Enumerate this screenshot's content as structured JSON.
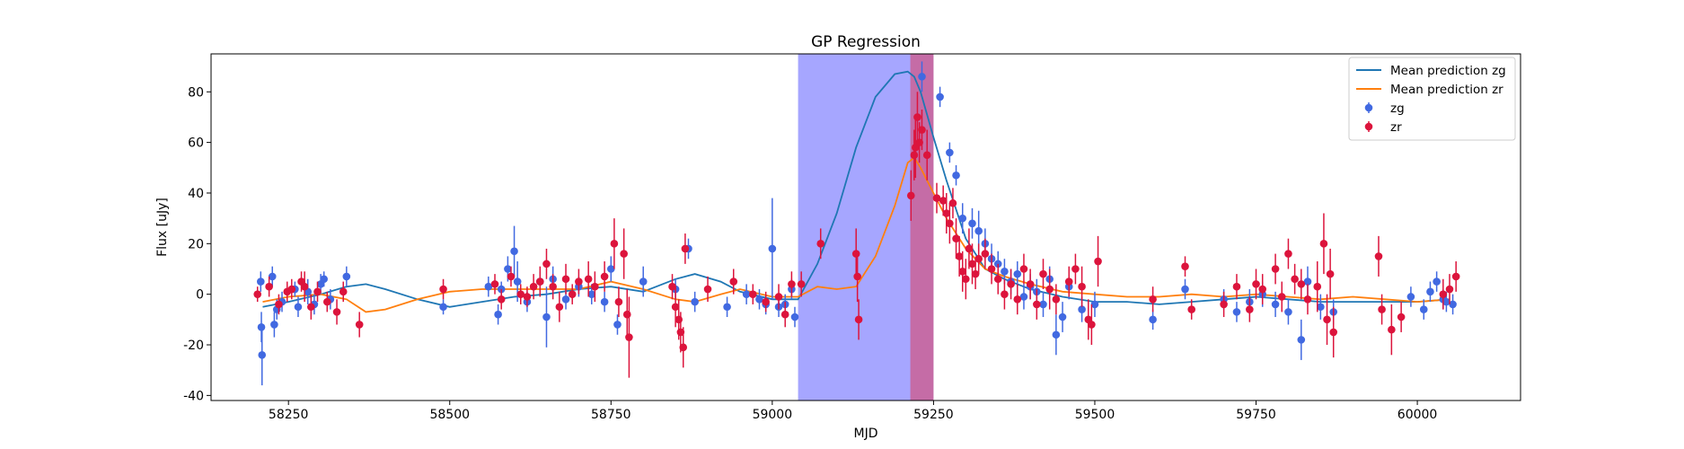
{
  "chart_data": {
    "type": "scatter",
    "title": "GP Regression",
    "xlabel": "MJD",
    "ylabel": "Flux [uJy]",
    "xlim": [
      58130,
      60160
    ],
    "ylim": [
      -42,
      95
    ],
    "xticks": [
      58250,
      58500,
      58750,
      59000,
      59250,
      59500,
      59750,
      60000
    ],
    "yticks": [
      -40,
      -20,
      0,
      20,
      40,
      60,
      80
    ],
    "grid": false,
    "legend_position": "top-right",
    "shaded_regions": [
      {
        "x0": 59040,
        "x1": 59250,
        "color": "#0000ff",
        "opacity": 0.35
      },
      {
        "x0": 59214,
        "x1": 59250,
        "color": "#ff0000",
        "opacity": 0.35
      }
    ],
    "series": [
      {
        "name": "Mean prediction zg",
        "kind": "line",
        "color": "#1f77b4",
        "x": [
          58210,
          58250,
          58300,
          58340,
          58370,
          58400,
          58450,
          58500,
          58550,
          58600,
          58650,
          58700,
          58750,
          58800,
          58850,
          58880,
          58920,
          58950,
          59000,
          59040,
          59070,
          59100,
          59130,
          59160,
          59190,
          59210,
          59220,
          59230,
          59250,
          59270,
          59300,
          59330,
          59360,
          59400,
          59450,
          59500,
          59550,
          59600,
          59650,
          59700,
          59750,
          59800,
          59850,
          59900,
          59950,
          60000,
          60050
        ],
        "y": [
          -5,
          -3,
          0,
          3,
          4,
          2,
          -2,
          -5,
          -3,
          -1,
          0,
          2,
          3,
          1,
          6,
          8,
          5,
          1,
          -2,
          -2,
          12,
          32,
          58,
          78,
          87,
          88,
          86,
          80,
          62,
          45,
          22,
          10,
          6,
          2,
          -1,
          -3,
          -3,
          -4,
          -3,
          -2,
          -1,
          -2,
          -3,
          -3,
          -3,
          -3,
          -2
        ]
      },
      {
        "name": "Mean prediction zr",
        "kind": "line",
        "color": "#ff7f0e",
        "x": [
          58210,
          58250,
          58300,
          58340,
          58370,
          58400,
          58450,
          58500,
          58550,
          58600,
          58650,
          58700,
          58750,
          58800,
          58850,
          58880,
          58920,
          58950,
          59000,
          59040,
          59070,
          59100,
          59130,
          59160,
          59190,
          59210,
          59220,
          59230,
          59250,
          59270,
          59300,
          59330,
          59360,
          59400,
          59450,
          59500,
          59550,
          59600,
          59650,
          59700,
          59750,
          59800,
          59850,
          59900,
          59950,
          60000,
          60050
        ],
        "y": [
          -3,
          -1,
          0,
          -2,
          -7,
          -6,
          -2,
          1,
          2,
          2,
          2,
          2,
          5,
          2,
          -2,
          -3,
          0,
          2,
          -1,
          -1,
          3,
          2,
          3,
          15,
          35,
          52,
          54,
          50,
          40,
          30,
          18,
          10,
          7,
          4,
          1,
          0,
          -1,
          -1,
          0,
          -1,
          0,
          -1,
          -2,
          -1,
          -2,
          -3,
          -2
        ]
      },
      {
        "name": "zg",
        "kind": "errorbar",
        "color": "#4169e1",
        "points": [
          [
            58207,
            5,
            4
          ],
          [
            58208,
            -13,
            6
          ],
          [
            58209,
            -24,
            12
          ],
          [
            58225,
            7,
            4
          ],
          [
            58228,
            -12,
            5
          ],
          [
            58232,
            -6,
            4
          ],
          [
            58240,
            -3,
            4
          ],
          [
            58260,
            2,
            3
          ],
          [
            58265,
            -5,
            4
          ],
          [
            58280,
            1,
            5
          ],
          [
            58290,
            -4,
            4
          ],
          [
            58300,
            4,
            4
          ],
          [
            58305,
            6,
            3
          ],
          [
            58315,
            -2,
            4
          ],
          [
            58340,
            7,
            4
          ],
          [
            58490,
            -5,
            3
          ],
          [
            58560,
            3,
            4
          ],
          [
            58575,
            -8,
            4
          ],
          [
            58580,
            2,
            3
          ],
          [
            58590,
            10,
            5
          ],
          [
            58600,
            17,
            10
          ],
          [
            58605,
            5,
            8
          ],
          [
            58620,
            -3,
            4
          ],
          [
            58640,
            5,
            4
          ],
          [
            58650,
            -9,
            12
          ],
          [
            58660,
            6,
            5
          ],
          [
            58680,
            -2,
            4
          ],
          [
            58700,
            3,
            4
          ],
          [
            58720,
            0,
            4
          ],
          [
            58740,
            -3,
            4
          ],
          [
            58750,
            10,
            5
          ],
          [
            58760,
            -12,
            4
          ],
          [
            58800,
            5,
            6
          ],
          [
            58850,
            2,
            4
          ],
          [
            58870,
            18,
            4
          ],
          [
            58880,
            -3,
            4
          ],
          [
            58930,
            -5,
            4
          ],
          [
            58960,
            0,
            4
          ],
          [
            58980,
            -2,
            4
          ],
          [
            58990,
            -4,
            4
          ],
          [
            59000,
            18,
            20
          ],
          [
            59010,
            -5,
            4
          ],
          [
            59020,
            -4,
            4
          ],
          [
            59030,
            2,
            4
          ],
          [
            59035,
            -9,
            4
          ],
          [
            59232,
            86,
            6
          ],
          [
            59260,
            78,
            4
          ],
          [
            59275,
            56,
            4
          ],
          [
            59285,
            47,
            4
          ],
          [
            59295,
            30,
            6
          ],
          [
            59310,
            28,
            6
          ],
          [
            59320,
            25,
            8
          ],
          [
            59330,
            20,
            6
          ],
          [
            59340,
            14,
            6
          ],
          [
            59350,
            12,
            5
          ],
          [
            59360,
            9,
            5
          ],
          [
            59370,
            5,
            5
          ],
          [
            59380,
            8,
            5
          ],
          [
            59390,
            -1,
            5
          ],
          [
            59400,
            3,
            5
          ],
          [
            59410,
            1,
            5
          ],
          [
            59420,
            -4,
            5
          ],
          [
            59430,
            6,
            5
          ],
          [
            59440,
            -16,
            8
          ],
          [
            59450,
            -9,
            6
          ],
          [
            59460,
            3,
            5
          ],
          [
            59480,
            -6,
            5
          ],
          [
            59500,
            -4,
            5
          ],
          [
            59590,
            -10,
            4
          ],
          [
            59640,
            2,
            4
          ],
          [
            59700,
            -2,
            4
          ],
          [
            59720,
            -7,
            4
          ],
          [
            59740,
            -3,
            5
          ],
          [
            59760,
            0,
            5
          ],
          [
            59780,
            -4,
            5
          ],
          [
            59800,
            -7,
            5
          ],
          [
            59820,
            -18,
            8
          ],
          [
            59830,
            5,
            6
          ],
          [
            59850,
            -5,
            5
          ],
          [
            59870,
            -7,
            5
          ],
          [
            59990,
            -1,
            4
          ],
          [
            60010,
            -6,
            4
          ],
          [
            60020,
            1,
            4
          ],
          [
            60030,
            5,
            4
          ],
          [
            60040,
            -2,
            4
          ],
          [
            60045,
            -3,
            4
          ],
          [
            60055,
            -4,
            4
          ]
        ]
      },
      {
        "name": "zr",
        "kind": "errorbar",
        "color": "#dc143c",
        "points": [
          [
            58202,
            0,
            3
          ],
          [
            58220,
            3,
            4
          ],
          [
            58235,
            -4,
            4
          ],
          [
            58248,
            1,
            4
          ],
          [
            58255,
            2,
            4
          ],
          [
            58270,
            5,
            4
          ],
          [
            58275,
            3,
            6
          ],
          [
            58285,
            -5,
            5
          ],
          [
            58295,
            1,
            4
          ],
          [
            58310,
            -3,
            4
          ],
          [
            58325,
            -7,
            5
          ],
          [
            58335,
            1,
            4
          ],
          [
            58360,
            -12,
            5
          ],
          [
            58490,
            2,
            4
          ],
          [
            58570,
            4,
            4
          ],
          [
            58580,
            -2,
            4
          ],
          [
            58595,
            7,
            4
          ],
          [
            58610,
            0,
            4
          ],
          [
            58620,
            -1,
            4
          ],
          [
            58630,
            3,
            5
          ],
          [
            58640,
            5,
            6
          ],
          [
            58650,
            12,
            6
          ],
          [
            58660,
            3,
            5
          ],
          [
            58670,
            -5,
            6
          ],
          [
            58680,
            6,
            6
          ],
          [
            58690,
            0,
            4
          ],
          [
            58700,
            5,
            5
          ],
          [
            58715,
            6,
            7
          ],
          [
            58725,
            3,
            6
          ],
          [
            58740,
            7,
            6
          ],
          [
            58755,
            20,
            10
          ],
          [
            58762,
            -3,
            6
          ],
          [
            58770,
            16,
            10
          ],
          [
            58775,
            -8,
            10
          ],
          [
            58778,
            -17,
            16
          ],
          [
            58845,
            3,
            5
          ],
          [
            58850,
            -5,
            8
          ],
          [
            58855,
            -10,
            8
          ],
          [
            58858,
            -15,
            8
          ],
          [
            58862,
            -21,
            8
          ],
          [
            58865,
            18,
            6
          ],
          [
            58900,
            2,
            5
          ],
          [
            58940,
            5,
            5
          ],
          [
            58970,
            0,
            4
          ],
          [
            58990,
            -3,
            4
          ],
          [
            59010,
            -1,
            5
          ],
          [
            59020,
            -8,
            5
          ],
          [
            59030,
            4,
            5
          ],
          [
            59045,
            4,
            5
          ],
          [
            59075,
            20,
            6
          ],
          [
            59130,
            16,
            10
          ],
          [
            59132,
            7,
            10
          ],
          [
            59134,
            -10,
            8
          ],
          [
            59215,
            39,
            10
          ],
          [
            59220,
            55,
            10
          ],
          [
            59222,
            58,
            12
          ],
          [
            59225,
            70,
            10
          ],
          [
            59228,
            60,
            8
          ],
          [
            59232,
            65,
            8
          ],
          [
            59240,
            55,
            10
          ],
          [
            59255,
            38,
            6
          ],
          [
            59265,
            37,
            6
          ],
          [
            59270,
            32,
            8
          ],
          [
            59275,
            28,
            8
          ],
          [
            59280,
            36,
            6
          ],
          [
            59285,
            22,
            8
          ],
          [
            59290,
            15,
            8
          ],
          [
            59295,
            9,
            8
          ],
          [
            59300,
            6,
            8
          ],
          [
            59305,
            18,
            8
          ],
          [
            59310,
            12,
            8
          ],
          [
            59315,
            8,
            6
          ],
          [
            59320,
            14,
            6
          ],
          [
            59330,
            16,
            6
          ],
          [
            59340,
            10,
            6
          ],
          [
            59350,
            6,
            6
          ],
          [
            59360,
            0,
            6
          ],
          [
            59370,
            4,
            6
          ],
          [
            59380,
            -2,
            6
          ],
          [
            59390,
            10,
            6
          ],
          [
            59400,
            4,
            6
          ],
          [
            59410,
            -4,
            6
          ],
          [
            59420,
            8,
            6
          ],
          [
            59430,
            2,
            8
          ],
          [
            59440,
            -2,
            6
          ],
          [
            59460,
            5,
            6
          ],
          [
            59470,
            10,
            6
          ],
          [
            59480,
            3,
            8
          ],
          [
            59490,
            -10,
            8
          ],
          [
            59495,
            -12,
            8
          ],
          [
            59505,
            13,
            10
          ],
          [
            59590,
            -2,
            5
          ],
          [
            59640,
            11,
            4
          ],
          [
            59650,
            -6,
            4
          ],
          [
            59700,
            -4,
            5
          ],
          [
            59720,
            3,
            5
          ],
          [
            59740,
            -6,
            5
          ],
          [
            59750,
            4,
            6
          ],
          [
            59760,
            2,
            6
          ],
          [
            59780,
            10,
            6
          ],
          [
            59790,
            -1,
            6
          ],
          [
            59800,
            16,
            6
          ],
          [
            59810,
            6,
            6
          ],
          [
            59820,
            4,
            6
          ],
          [
            59830,
            -2,
            6
          ],
          [
            59845,
            3,
            10
          ],
          [
            59855,
            20,
            12
          ],
          [
            59860,
            -10,
            10
          ],
          [
            59865,
            8,
            10
          ],
          [
            59870,
            -15,
            10
          ],
          [
            59940,
            15,
            8
          ],
          [
            59945,
            -6,
            6
          ],
          [
            59960,
            -14,
            10
          ],
          [
            59975,
            -9,
            6
          ],
          [
            60040,
            0,
            6
          ],
          [
            60050,
            2,
            6
          ],
          [
            60060,
            7,
            6
          ]
        ]
      }
    ],
    "legend": [
      {
        "label": "Mean prediction zg",
        "symbol": "line",
        "color": "#1f77b4"
      },
      {
        "label": "Mean prediction zr",
        "symbol": "line",
        "color": "#ff7f0e"
      },
      {
        "label": "zg",
        "symbol": "errorbar",
        "color": "#4169e1"
      },
      {
        "label": "zr",
        "symbol": "errorbar",
        "color": "#dc143c"
      }
    ]
  }
}
